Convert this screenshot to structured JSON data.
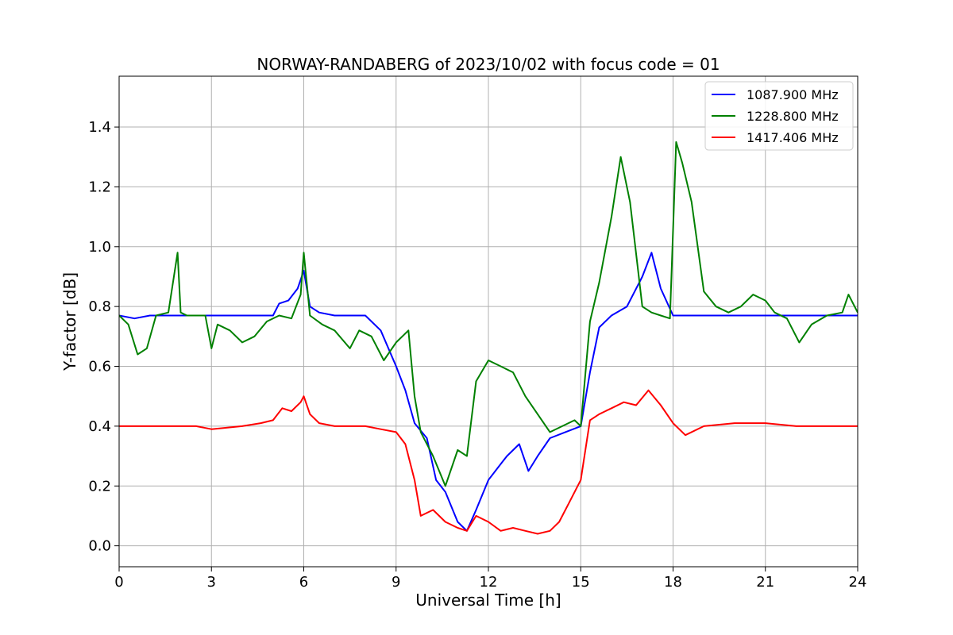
{
  "chart_data": {
    "type": "line",
    "title": "NORWAY-RANDABERG of 2023/10/02 with focus code = 01",
    "xlabel": "Universal Time [h]",
    "ylabel": "Y-factor [dB]",
    "xlim": [
      0,
      24
    ],
    "ylim": [
      -0.07,
      1.57
    ],
    "xticks": [
      0,
      3,
      6,
      9,
      12,
      15,
      18,
      21,
      24
    ],
    "xtick_labels": [
      "0",
      "3",
      "6",
      "9",
      "12",
      "15",
      "18",
      "21",
      "24"
    ],
    "yticks": [
      0.0,
      0.2,
      0.4,
      0.6,
      0.8,
      1.0,
      1.2,
      1.4
    ],
    "ytick_labels": [
      "0.0",
      "0.2",
      "0.4",
      "0.6",
      "0.8",
      "1.0",
      "1.2",
      "1.4"
    ],
    "grid": true,
    "legend_position": "top-right",
    "series": [
      {
        "name": "1087.900 MHz",
        "color": "#0000ff",
        "x": [
          0,
          0.5,
          1,
          2,
          3,
          4,
          5,
          5.2,
          5.5,
          5.8,
          6.0,
          6.2,
          6.5,
          7,
          8,
          8.5,
          9.0,
          9.3,
          9.6,
          10.0,
          10.3,
          10.6,
          11.0,
          11.3,
          11.6,
          12.0,
          12.3,
          12.6,
          13.0,
          13.3,
          13.6,
          14.0,
          14.5,
          15.0,
          15.3,
          15.6,
          16.0,
          16.5,
          17.0,
          17.3,
          17.6,
          18,
          19,
          20,
          21,
          22,
          23,
          24
        ],
        "values": [
          0.77,
          0.76,
          0.77,
          0.77,
          0.77,
          0.77,
          0.77,
          0.81,
          0.82,
          0.86,
          0.92,
          0.8,
          0.78,
          0.77,
          0.77,
          0.72,
          0.6,
          0.52,
          0.41,
          0.36,
          0.22,
          0.18,
          0.08,
          0.05,
          0.12,
          0.22,
          0.26,
          0.3,
          0.34,
          0.25,
          0.3,
          0.36,
          0.38,
          0.4,
          0.58,
          0.73,
          0.77,
          0.8,
          0.9,
          0.98,
          0.86,
          0.77,
          0.77,
          0.77,
          0.77,
          0.77,
          0.77,
          0.77
        ]
      },
      {
        "name": "1228.800 MHz",
        "color": "#008000",
        "x": [
          0,
          0.3,
          0.6,
          0.9,
          1.2,
          1.6,
          1.9,
          2.0,
          2.2,
          2.8,
          3.0,
          3.2,
          3.6,
          4.0,
          4.4,
          4.8,
          5.2,
          5.6,
          5.9,
          6.0,
          6.2,
          6.6,
          7.0,
          7.5,
          7.8,
          8.2,
          8.6,
          9.0,
          9.4,
          9.6,
          9.8,
          10.2,
          10.6,
          11.0,
          11.3,
          11.6,
          12.0,
          12.4,
          12.8,
          13.2,
          13.6,
          14.0,
          14.4,
          14.8,
          15.0,
          15.3,
          15.6,
          16.0,
          16.3,
          16.6,
          17.0,
          17.3,
          17.6,
          17.9,
          18.1,
          18.3,
          18.6,
          19.0,
          19.4,
          19.8,
          20.2,
          20.6,
          21.0,
          21.3,
          21.7,
          22.1,
          22.5,
          23.0,
          23.5,
          23.7,
          24
        ],
        "values": [
          0.77,
          0.74,
          0.64,
          0.66,
          0.77,
          0.78,
          0.98,
          0.78,
          0.77,
          0.77,
          0.66,
          0.74,
          0.72,
          0.68,
          0.7,
          0.75,
          0.77,
          0.76,
          0.84,
          0.98,
          0.77,
          0.74,
          0.72,
          0.66,
          0.72,
          0.7,
          0.62,
          0.68,
          0.72,
          0.5,
          0.38,
          0.3,
          0.2,
          0.32,
          0.3,
          0.55,
          0.62,
          0.6,
          0.58,
          0.5,
          0.44,
          0.38,
          0.4,
          0.42,
          0.4,
          0.75,
          0.88,
          1.1,
          1.3,
          1.15,
          0.8,
          0.78,
          0.77,
          0.76,
          1.35,
          1.28,
          1.15,
          0.85,
          0.8,
          0.78,
          0.8,
          0.84,
          0.82,
          0.78,
          0.76,
          0.68,
          0.74,
          0.77,
          0.78,
          0.84,
          0.78
        ]
      },
      {
        "name": "1417.406 MHz",
        "color": "#ff0000",
        "x": [
          0,
          1,
          2,
          2.5,
          3,
          4,
          4.6,
          5.0,
          5.3,
          5.6,
          5.9,
          6.0,
          6.2,
          6.5,
          7,
          8,
          8.5,
          9.0,
          9.3,
          9.6,
          9.8,
          10.2,
          10.6,
          11.0,
          11.3,
          11.6,
          12.0,
          12.4,
          12.8,
          13.2,
          13.6,
          14.0,
          14.3,
          14.6,
          15.0,
          15.3,
          15.6,
          16.0,
          16.4,
          16.8,
          17.2,
          17.6,
          18,
          18.4,
          19,
          20,
          21,
          22,
          23,
          24
        ],
        "values": [
          0.4,
          0.4,
          0.4,
          0.4,
          0.39,
          0.4,
          0.41,
          0.42,
          0.46,
          0.45,
          0.48,
          0.5,
          0.44,
          0.41,
          0.4,
          0.4,
          0.39,
          0.38,
          0.34,
          0.22,
          0.1,
          0.12,
          0.08,
          0.06,
          0.05,
          0.1,
          0.08,
          0.05,
          0.06,
          0.05,
          0.04,
          0.05,
          0.08,
          0.14,
          0.22,
          0.42,
          0.44,
          0.46,
          0.48,
          0.47,
          0.52,
          0.47,
          0.41,
          0.37,
          0.4,
          0.41,
          0.41,
          0.4,
          0.4,
          0.4
        ]
      }
    ]
  }
}
